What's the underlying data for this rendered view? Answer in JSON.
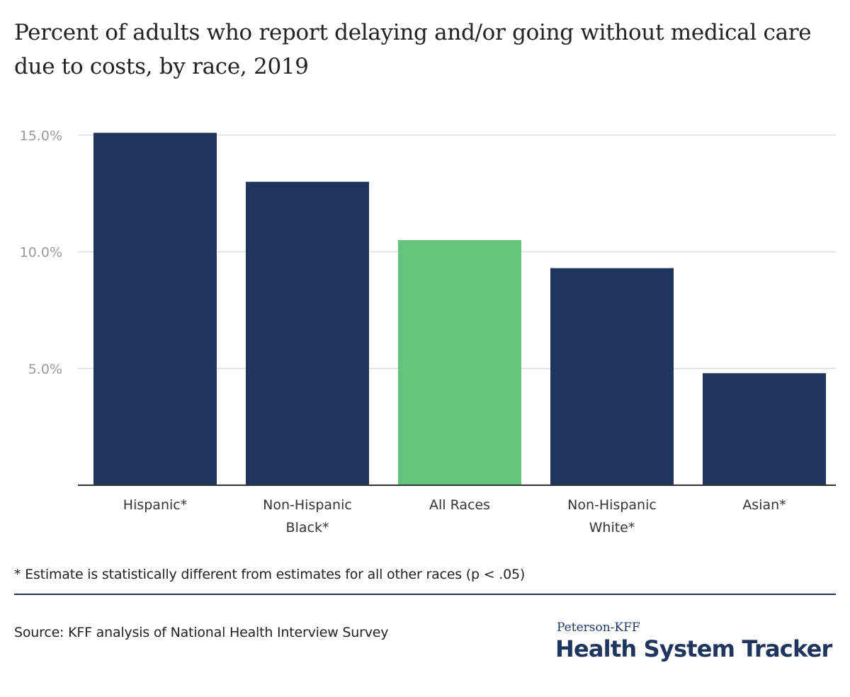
{
  "title": "Percent of adults who report delaying and/or going without medical care due to costs, by race, 2019",
  "footnote": "* Estimate is statistically different from estimates for all other races (p < .05)",
  "source": "Source: KFF analysis of National Health Interview Survey",
  "brand": {
    "small": "Peterson-KFF",
    "large": "Health System Tracker"
  },
  "colors": {
    "bar": "#1f355e",
    "highlight": "#64c47c",
    "grid": "#dddddd",
    "axis": "#333333",
    "tick": "#9a9a9a",
    "label": "#333333"
  },
  "chart_data": {
    "type": "bar",
    "title": "Percent of adults who report delaying and/or going without medical care due to costs, by race, 2019",
    "xlabel": "",
    "ylabel": "",
    "ylim": [
      0,
      16
    ],
    "yticks": [
      5,
      10,
      15
    ],
    "ytick_labels": [
      "5.0%",
      "10.0%",
      "15.0%"
    ],
    "grid": true,
    "categories": [
      [
        "Hispanic*"
      ],
      [
        "Non-Hispanic",
        "Black*"
      ],
      [
        "All Races"
      ],
      [
        "Non-Hispanic",
        "White*"
      ],
      [
        "Asian*"
      ]
    ],
    "values": [
      15.1,
      13.0,
      10.5,
      9.3,
      4.8
    ],
    "highlight_index": 2
  }
}
